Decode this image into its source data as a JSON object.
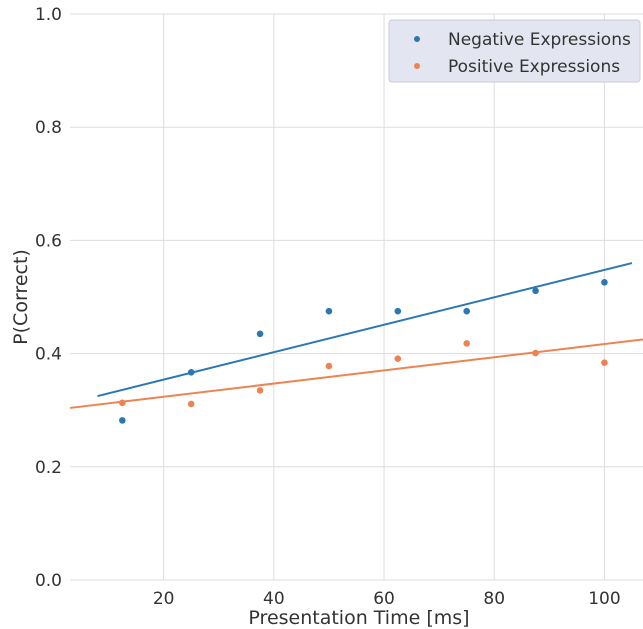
{
  "chart_data": {
    "type": "scatter",
    "xlabel": "Presentation Time [ms]",
    "ylabel": "P(Correct)",
    "xlim": [
      3,
      107
    ],
    "ylim": [
      0,
      1.0
    ],
    "xticks": [
      "20",
      "40",
      "60",
      "80",
      "100"
    ],
    "xtick_values": [
      20,
      40,
      60,
      80,
      100
    ],
    "yticks": [
      "0.0",
      "0.2",
      "0.4",
      "0.6",
      "0.8",
      "1.0"
    ],
    "ytick_values": [
      0,
      0.2,
      0.4,
      0.6,
      0.8,
      1.0
    ],
    "grid": true,
    "legend_position": "top-right",
    "series": [
      {
        "name": "Negative Expressions",
        "color": "#2a77b4",
        "x": [
          12.5,
          25,
          37.5,
          50,
          62.5,
          75,
          87.5,
          100
        ],
        "y": [
          0.282,
          0.367,
          0.435,
          0.475,
          0.475,
          0.475,
          0.511,
          0.526
        ],
        "fit": {
          "x": [
            8,
            105
          ],
          "y": [
            0.325,
            0.56
          ]
        }
      },
      {
        "name": "Positive Expressions",
        "color": "#ee8352",
        "x": [
          12.5,
          25,
          37.5,
          50,
          62.5,
          75,
          87.5,
          100
        ],
        "y": [
          0.313,
          0.311,
          0.335,
          0.378,
          0.391,
          0.418,
          0.401,
          0.384
        ],
        "fit": {
          "x": [
            3,
            107
          ],
          "y": [
            0.304,
            0.425
          ]
        }
      }
    ]
  }
}
